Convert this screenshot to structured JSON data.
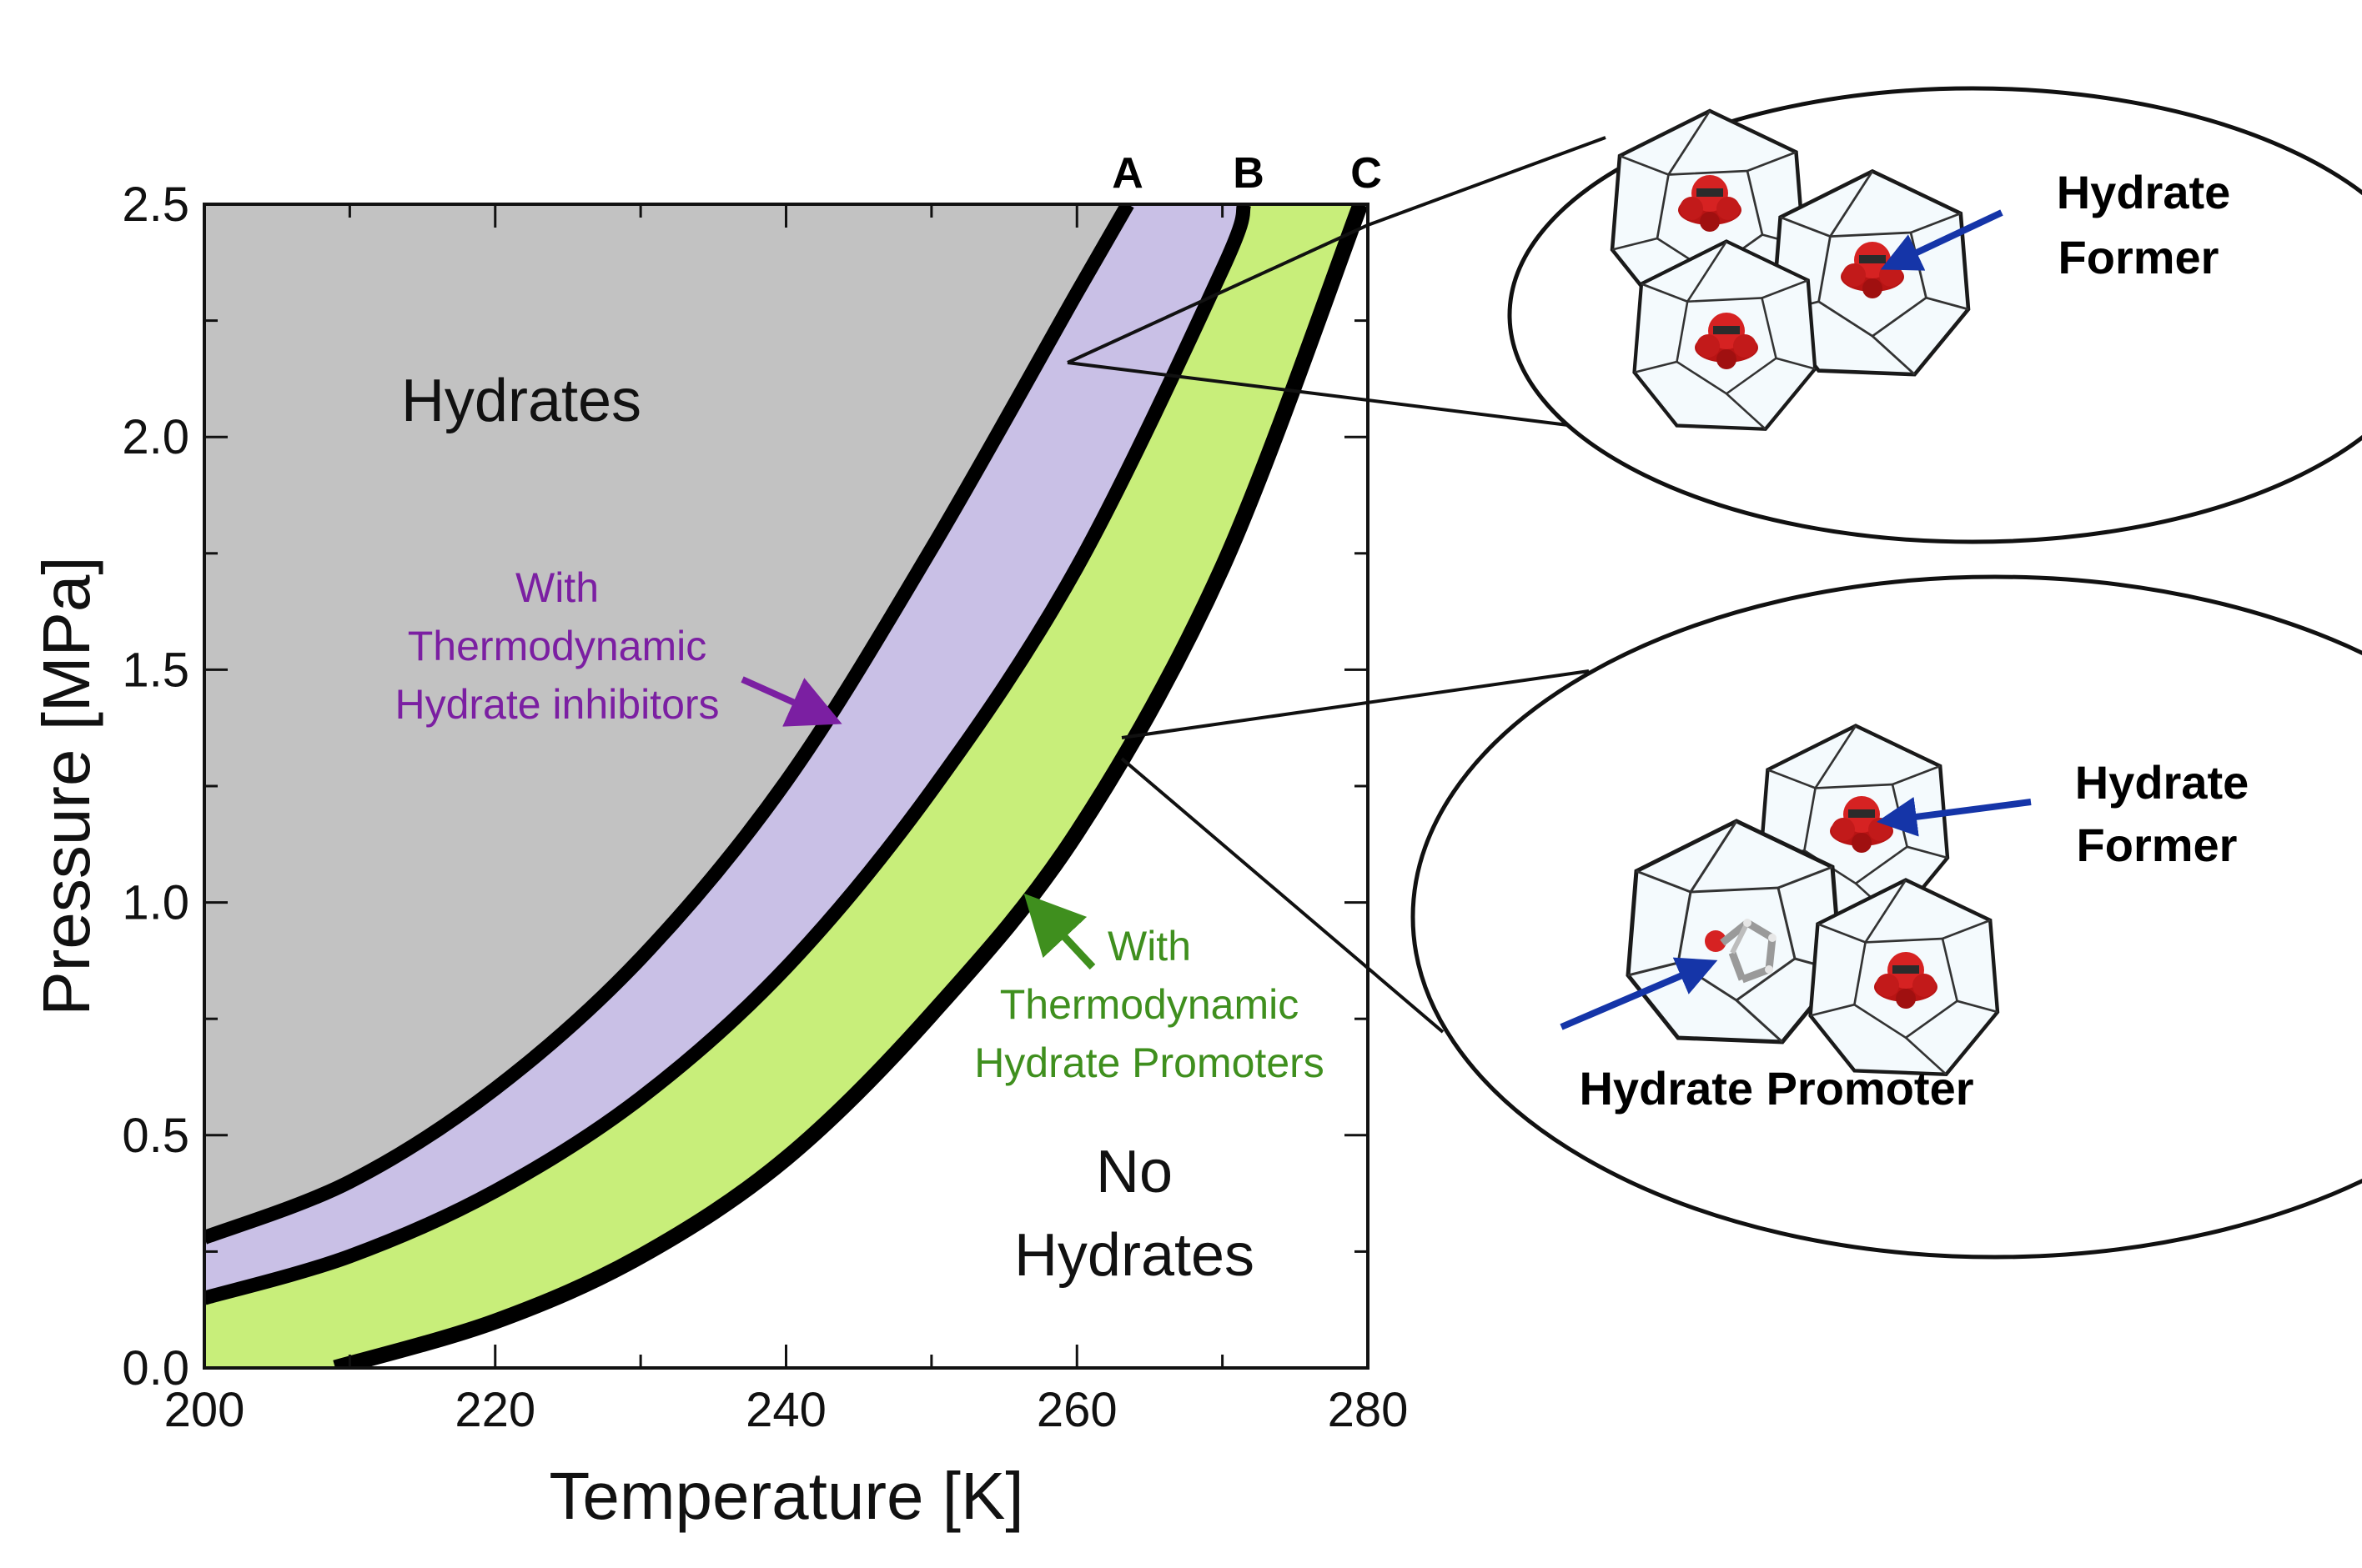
{
  "chart_data": {
    "type": "area",
    "xlabel": "Temperature [K]",
    "ylabel": "Pressure [MPa]",
    "xlim": [
      200,
      280
    ],
    "ylim": [
      0.0,
      2.5
    ],
    "x_ticks": [
      "200",
      "220",
      "240",
      "260",
      "280"
    ],
    "y_ticks": [
      "0.0",
      "0.5",
      "1.0",
      "1.5",
      "2.0",
      "2.5"
    ],
    "x_tick_values": [
      200,
      220,
      240,
      260,
      280
    ],
    "y_tick_values": [
      0.0,
      0.5,
      1.0,
      1.5,
      2.0,
      2.5
    ],
    "grid": false,
    "series": [
      {
        "name": "A",
        "x": [
          200,
          210,
          220,
          230,
          240,
          250,
          260,
          263.5
        ],
        "y": [
          0.28,
          0.4,
          0.6,
          0.88,
          1.26,
          1.76,
          2.31,
          2.5
        ]
      },
      {
        "name": "B",
        "x": [
          200,
          210,
          220,
          230,
          240,
          250,
          260,
          270,
          271.5
        ],
        "y": [
          0.15,
          0.24,
          0.38,
          0.58,
          0.86,
          1.24,
          1.72,
          2.36,
          2.5
        ]
      },
      {
        "name": "C",
        "x": [
          209,
          220,
          230,
          240,
          250,
          260,
          270,
          279.5
        ],
        "y": [
          0.0,
          0.1,
          0.24,
          0.45,
          0.76,
          1.15,
          1.72,
          2.5
        ]
      }
    ],
    "regions": {
      "hydrates": "Hydrates",
      "no_hydrates": [
        "No",
        "Hydrates"
      ]
    },
    "annotations": {
      "inhibitors": [
        "With",
        "Thermodynamic",
        "Hydrate inhibitors"
      ],
      "promoters": [
        "With",
        "Thermodynamic",
        "Hydrate Promoters"
      ]
    },
    "colors": {
      "hydrate_region": "#c2c2c2",
      "inhibitor_band": "#c9c0e6",
      "promoter_band": "#c8ee7a",
      "curve": "#000000",
      "inhibitor_text": "#7b1fa2",
      "promoter_text": "#3f8f1e",
      "molecule_arrow": "#1535a8",
      "molecule_red": "#cc1f1f"
    }
  },
  "insets": {
    "top": {
      "former_label": [
        "Hydrate",
        "Former"
      ],
      "icon": "hydrate-cage-cluster-icon"
    },
    "bottom": {
      "former_label": [
        "Hydrate",
        "Former"
      ],
      "promoter_label": "Hydrate Promoter",
      "icon": "hydrate-cage-cluster-with-promoter-icon"
    }
  }
}
